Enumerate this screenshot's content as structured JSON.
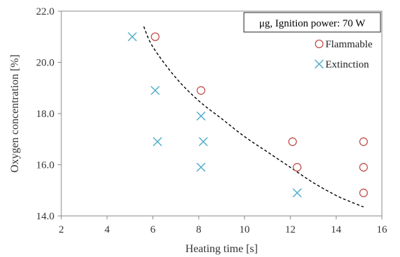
{
  "chart_data": {
    "type": "scatter",
    "xlabel": "Heating time [s]",
    "ylabel": "Oxygen concentration [%]",
    "xlim": [
      2,
      16
    ],
    "ylim": [
      14.0,
      22.0
    ],
    "x_ticks": [
      "2",
      "4",
      "6",
      "8",
      "10",
      "12",
      "14",
      "16"
    ],
    "y_ticks": [
      "14.0",
      "16.0",
      "18.0",
      "20.0",
      "22.0"
    ],
    "grid": false,
    "legend_position": "top-right",
    "annotation": "μg, Ignition power: 70 W",
    "series": [
      {
        "name": "Flammable",
        "marker": "circle",
        "color": "#c0504d",
        "points": [
          {
            "x": 6.1,
            "y": 21.0
          },
          {
            "x": 8.1,
            "y": 18.9
          },
          {
            "x": 12.1,
            "y": 16.9
          },
          {
            "x": 12.3,
            "y": 15.9
          },
          {
            "x": 15.2,
            "y": 16.9
          },
          {
            "x": 15.2,
            "y": 15.9
          },
          {
            "x": 15.2,
            "y": 14.9
          }
        ]
      },
      {
        "name": "Extinction",
        "marker": "cross",
        "color": "#4bacc6",
        "points": [
          {
            "x": 5.1,
            "y": 21.0
          },
          {
            "x": 6.1,
            "y": 18.9
          },
          {
            "x": 6.2,
            "y": 16.9
          },
          {
            "x": 8.1,
            "y": 17.9
          },
          {
            "x": 8.2,
            "y": 16.9
          },
          {
            "x": 8.1,
            "y": 15.9
          },
          {
            "x": 12.3,
            "y": 14.9
          }
        ]
      }
    ],
    "boundary_curve": {
      "style": "dashed",
      "color": "#000000",
      "points": [
        {
          "x": 5.6,
          "y": 21.4
        },
        {
          "x": 6.0,
          "y": 20.6
        },
        {
          "x": 7.0,
          "y": 19.4
        },
        {
          "x": 8.0,
          "y": 18.5
        },
        {
          "x": 9.0,
          "y": 17.8
        },
        {
          "x": 10.0,
          "y": 17.1
        },
        {
          "x": 11.0,
          "y": 16.5
        },
        {
          "x": 12.0,
          "y": 15.9
        },
        {
          "x": 13.0,
          "y": 15.3
        },
        {
          "x": 14.0,
          "y": 14.8
        },
        {
          "x": 14.5,
          "y": 14.6
        },
        {
          "x": 15.2,
          "y": 14.35
        }
      ]
    }
  }
}
